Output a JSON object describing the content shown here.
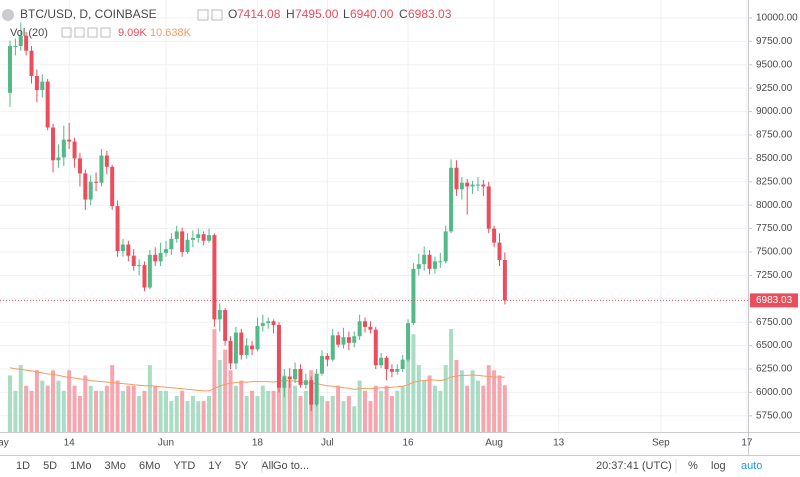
{
  "chart_data": {
    "type": "candlestick",
    "legend": {
      "symbol": "BTC/USD, D, COINBASE",
      "o": "O",
      "h": "H",
      "l": "L",
      "c": "C",
      "values": [
        "7414.08",
        "7495.00",
        "6940.00",
        "6983.03"
      ],
      "volume_name": "Vol (20)",
      "volume_values": [
        "9.09K",
        "10.638K"
      ]
    },
    "open": [
      9200,
      9700,
      9700,
      9810,
      9650,
      9380,
      9230,
      9320,
      8830,
      8480,
      8510,
      8700,
      8680,
      8500,
      8340,
      8060,
      8250,
      8240,
      8530,
      8410,
      7990,
      7510,
      7580,
      7460,
      7350,
      7360,
      7120,
      7470,
      7400,
      7490,
      7530,
      7640,
      7720,
      7500,
      7630,
      7650,
      7690,
      7620,
      7680,
      6780,
      6880,
      6550,
      6310,
      6640,
      6400,
      6500,
      6460,
      6710,
      6740,
      6760,
      6720,
      6050,
      6170,
      6140,
      6250,
      6080,
      6130,
      5870,
      6200,
      6390,
      6350,
      6610,
      6510,
      6590,
      6530,
      6600,
      6760,
      6700,
      6670,
      6290,
      6370,
      6250,
      6220,
      6250,
      6350,
      6740,
      7320,
      7370,
      7470,
      7320,
      7400,
      7400,
      7720,
      8400,
      8170,
      8240,
      8200,
      8220,
      8220,
      8200,
      7750,
      7600,
      7414.08
    ],
    "high": [
      9760,
      9780,
      9950,
      9850,
      9700,
      9450,
      9400,
      9350,
      8870,
      8650,
      8850,
      8880,
      8720,
      8560,
      8380,
      8320,
      8350,
      8600,
      8580,
      8430,
      8050,
      7640,
      7620,
      7530,
      7420,
      7400,
      7520,
      7550,
      7600,
      7620,
      7700,
      7780,
      7760,
      7700,
      7730,
      7750,
      7720,
      7750,
      7700,
      6950,
      6900,
      6600,
      6700,
      6680,
      6580,
      6550,
      6800,
      6830,
      6800,
      6780,
      6750,
      6250,
      6260,
      6320,
      6300,
      6200,
      6170,
      6250,
      6450,
      6420,
      6680,
      6650,
      6690,
      6650,
      6650,
      6830,
      6800,
      6760,
      6700,
      6420,
      6390,
      6300,
      6300,
      6400,
      6780,
      7380,
      7480,
      7560,
      7520,
      7450,
      7490,
      7780,
      8490,
      8480,
      8300,
      8280,
      8260,
      8300,
      8270,
      8250,
      7780,
      7700,
      7495
    ],
    "low": [
      9050,
      9600,
      9650,
      9600,
      9300,
      9100,
      9150,
      8800,
      8350,
      8400,
      8420,
      8600,
      8400,
      8200,
      7950,
      8000,
      8150,
      8200,
      8330,
      7950,
      7450,
      7450,
      7400,
      7300,
      7250,
      7080,
      7100,
      7350,
      7350,
      7450,
      7470,
      7600,
      7450,
      7480,
      7550,
      7600,
      7570,
      7600,
      6700,
      6650,
      6500,
      6250,
      6250,
      6350,
      6360,
      6400,
      6440,
      6650,
      6680,
      6630,
      6000,
      5950,
      6050,
      6100,
      6050,
      6040,
      5800,
      5850,
      6180,
      6280,
      6330,
      6480,
      6470,
      6450,
      6480,
      6560,
      6640,
      6630,
      6250,
      6260,
      6130,
      6160,
      6190,
      6220,
      6330,
      6720,
      7250,
      7300,
      7260,
      7270,
      7330,
      7380,
      7700,
      8100,
      8060,
      7900,
      8120,
      8150,
      8100,
      7700,
      7550,
      7350,
      6940
    ],
    "close": [
      9700,
      9700,
      9810,
      9650,
      9380,
      9230,
      9320,
      8830,
      8480,
      8510,
      8700,
      8680,
      8500,
      8340,
      8060,
      8250,
      8240,
      8530,
      8410,
      7990,
      7510,
      7580,
      7460,
      7350,
      7360,
      7120,
      7470,
      7400,
      7490,
      7530,
      7640,
      7720,
      7500,
      7630,
      7650,
      7690,
      7620,
      7680,
      6780,
      6880,
      6550,
      6310,
      6640,
      6400,
      6500,
      6460,
      6710,
      6740,
      6760,
      6720,
      6050,
      6170,
      6140,
      6250,
      6080,
      6130,
      5870,
      6200,
      6390,
      6350,
      6610,
      6510,
      6590,
      6530,
      6600,
      6760,
      6700,
      6670,
      6290,
      6370,
      6250,
      6220,
      6250,
      6350,
      6740,
      7320,
      7370,
      7470,
      7320,
      7400,
      7400,
      7720,
      8400,
      8170,
      8240,
      8200,
      8220,
      8220,
      8200,
      7750,
      7600,
      7414.08,
      6983.03
    ],
    "volume": [
      11,
      8,
      13,
      9,
      8,
      12,
      10,
      9,
      12,
      10,
      8,
      12,
      9,
      7,
      11,
      9,
      8,
      8,
      9,
      13,
      10,
      8,
      9,
      9,
      7,
      8,
      13,
      9,
      8,
      8,
      6,
      7,
      8,
      6,
      7,
      6,
      6,
      7,
      20,
      14,
      16,
      12,
      9,
      10,
      7,
      8,
      7,
      9,
      8,
      8,
      16,
      11,
      10,
      9,
      7,
      8,
      12,
      10,
      7,
      6,
      7,
      9,
      6,
      7,
      5,
      10,
      8,
      6,
      9,
      8,
      9,
      7,
      8,
      9,
      15,
      19,
      13,
      10,
      11,
      9,
      8,
      13,
      20,
      14,
      12,
      9,
      12,
      10,
      9,
      13,
      12,
      11,
      9.09
    ],
    "volume_ma": [
      12.5,
      12.3,
      12.2,
      12.0,
      11.9,
      11.7,
      11.5,
      11.3,
      11.2,
      11.0,
      10.8,
      10.6,
      10.5,
      10.3,
      10.2,
      10.0,
      9.9,
      9.8,
      9.7,
      9.6,
      9.5,
      9.4,
      9.3,
      9.2,
      9.1,
      9.0,
      9.0,
      8.9,
      8.8,
      8.7,
      8.6,
      8.5,
      8.4,
      8.3,
      8.2,
      8.1,
      8.0,
      8.0,
      8.5,
      8.9,
      9.3,
      9.5,
      9.6,
      9.7,
      9.7,
      9.8,
      9.8,
      9.8,
      9.8,
      9.7,
      9.9,
      10.0,
      10.0,
      9.9,
      9.8,
      9.6,
      9.5,
      9.4,
      9.2,
      9.0,
      8.9,
      8.8,
      8.6,
      8.5,
      8.3,
      8.4,
      8.5,
      8.4,
      8.5,
      8.6,
      8.6,
      8.7,
      8.8,
      8.9,
      9.2,
      9.7,
      9.9,
      10.0,
      10.1,
      10.1,
      10.0,
      10.2,
      10.7,
      10.9,
      11.0,
      11.0,
      11.1,
      11.0,
      10.9,
      10.8,
      10.7,
      10.7,
      10.638
    ],
    "up_color": "#53b987",
    "down_color": "#eb4d5c",
    "volume_up_color": "#a9dcc3",
    "volume_down_color": "#f5a6ae",
    "ma_color": "#f79a61",
    "ylim": [
      5577,
      10192
    ],
    "volume_ylim": [
      0,
      84
    ],
    "xlim": [
      -1.86,
      137.2
    ],
    "yticks": [
      {
        "value": 5750,
        "label": "5750.00"
      },
      {
        "value": 6000,
        "label": "6000.00"
      },
      {
        "value": 6250,
        "label": "6250.00"
      },
      {
        "value": 6500,
        "label": "6500.00"
      },
      {
        "value": 6750,
        "label": "6750.00"
      },
      {
        "value": 7000,
        "label": "7000.00"
      },
      {
        "value": 7250,
        "label": "7250.00"
      },
      {
        "value": 7500,
        "label": "7500.00"
      },
      {
        "value": 7750,
        "label": "7750.00"
      },
      {
        "value": 8000,
        "label": "8000.00"
      },
      {
        "value": 8250,
        "label": "8250.00"
      },
      {
        "value": 8500,
        "label": "8500.00"
      },
      {
        "value": 8750,
        "label": "8750.00"
      },
      {
        "value": 9000,
        "label": "9000.00"
      },
      {
        "value": 9250,
        "label": "9250.00"
      },
      {
        "value": 9500,
        "label": "9500.00"
      },
      {
        "value": 9750,
        "label": "9750.00"
      },
      {
        "value": 10000,
        "label": "10000.00"
      }
    ],
    "xticks": [
      {
        "value": -2,
        "label": "May"
      },
      {
        "value": 11,
        "label": "14"
      },
      {
        "value": 29,
        "label": "Jun"
      },
      {
        "value": 46,
        "label": "18"
      },
      {
        "value": 59,
        "label": "Jul"
      },
      {
        "value": 74,
        "label": "16"
      },
      {
        "value": 90,
        "label": "Aug"
      },
      {
        "value": 102,
        "label": "13"
      },
      {
        "value": 121,
        "label": "Sep"
      },
      {
        "value": 137,
        "label": "17"
      }
    ],
    "grid": true
  },
  "toolbar": {
    "ranges": [
      "1D",
      "5D",
      "1Mo",
      "3Mo",
      "6Mo",
      "YTD",
      "1Y",
      "5Y",
      "All"
    ],
    "goto": "Go to...",
    "time": "20:37:41 (UTC)",
    "percent": "%",
    "log": "log",
    "auto": "auto"
  }
}
